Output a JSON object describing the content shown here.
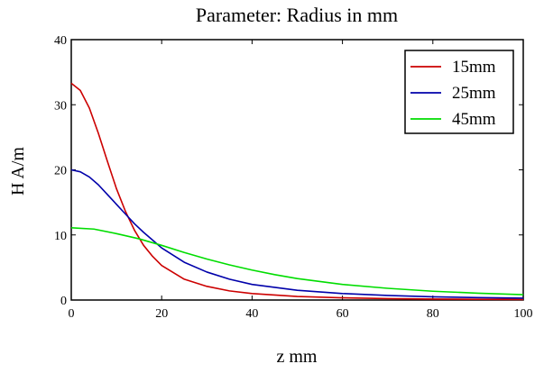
{
  "chart_data": {
    "type": "line",
    "title": "Parameter: Radius in mm",
    "xlabel": "z mm",
    "ylabel": "H A/m",
    "xlim": [
      0,
      100
    ],
    "ylim": [
      0,
      40
    ],
    "xticks": [
      0,
      20,
      40,
      60,
      80,
      100
    ],
    "yticks": [
      0,
      10,
      20,
      30,
      40
    ],
    "grid": false,
    "legend_position": "top-right",
    "series": [
      {
        "name": "15mm",
        "color": "#cc0000",
        "x": [
          0,
          2,
          4,
          6,
          8,
          10,
          12,
          14,
          16,
          18,
          20,
          25,
          30,
          35,
          40,
          50,
          60,
          70,
          80,
          90,
          100
        ],
        "y": [
          33.3,
          32.2,
          29.5,
          25.6,
          21.3,
          17.1,
          13.6,
          10.7,
          8.4,
          6.7,
          5.3,
          3.2,
          2.1,
          1.4,
          1.0,
          0.55,
          0.34,
          0.22,
          0.15,
          0.11,
          0.08
        ]
      },
      {
        "name": "25mm",
        "color": "#0000aa",
        "x": [
          0,
          2,
          4,
          6,
          8,
          10,
          12,
          14,
          16,
          18,
          20,
          25,
          30,
          35,
          40,
          50,
          60,
          70,
          80,
          90,
          100
        ],
        "y": [
          20.0,
          19.7,
          18.9,
          17.7,
          16.2,
          14.7,
          13.2,
          11.7,
          10.4,
          9.2,
          8.0,
          5.8,
          4.3,
          3.2,
          2.4,
          1.5,
          1.0,
          0.7,
          0.5,
          0.37,
          0.28
        ]
      },
      {
        "name": "45mm",
        "color": "#00dd00",
        "x": [
          0,
          5,
          10,
          15,
          20,
          25,
          30,
          35,
          40,
          45,
          50,
          60,
          70,
          80,
          90,
          100
        ],
        "y": [
          11.1,
          10.9,
          10.2,
          9.4,
          8.4,
          7.3,
          6.3,
          5.4,
          4.6,
          3.9,
          3.3,
          2.4,
          1.8,
          1.35,
          1.05,
          0.82
        ]
      }
    ]
  }
}
